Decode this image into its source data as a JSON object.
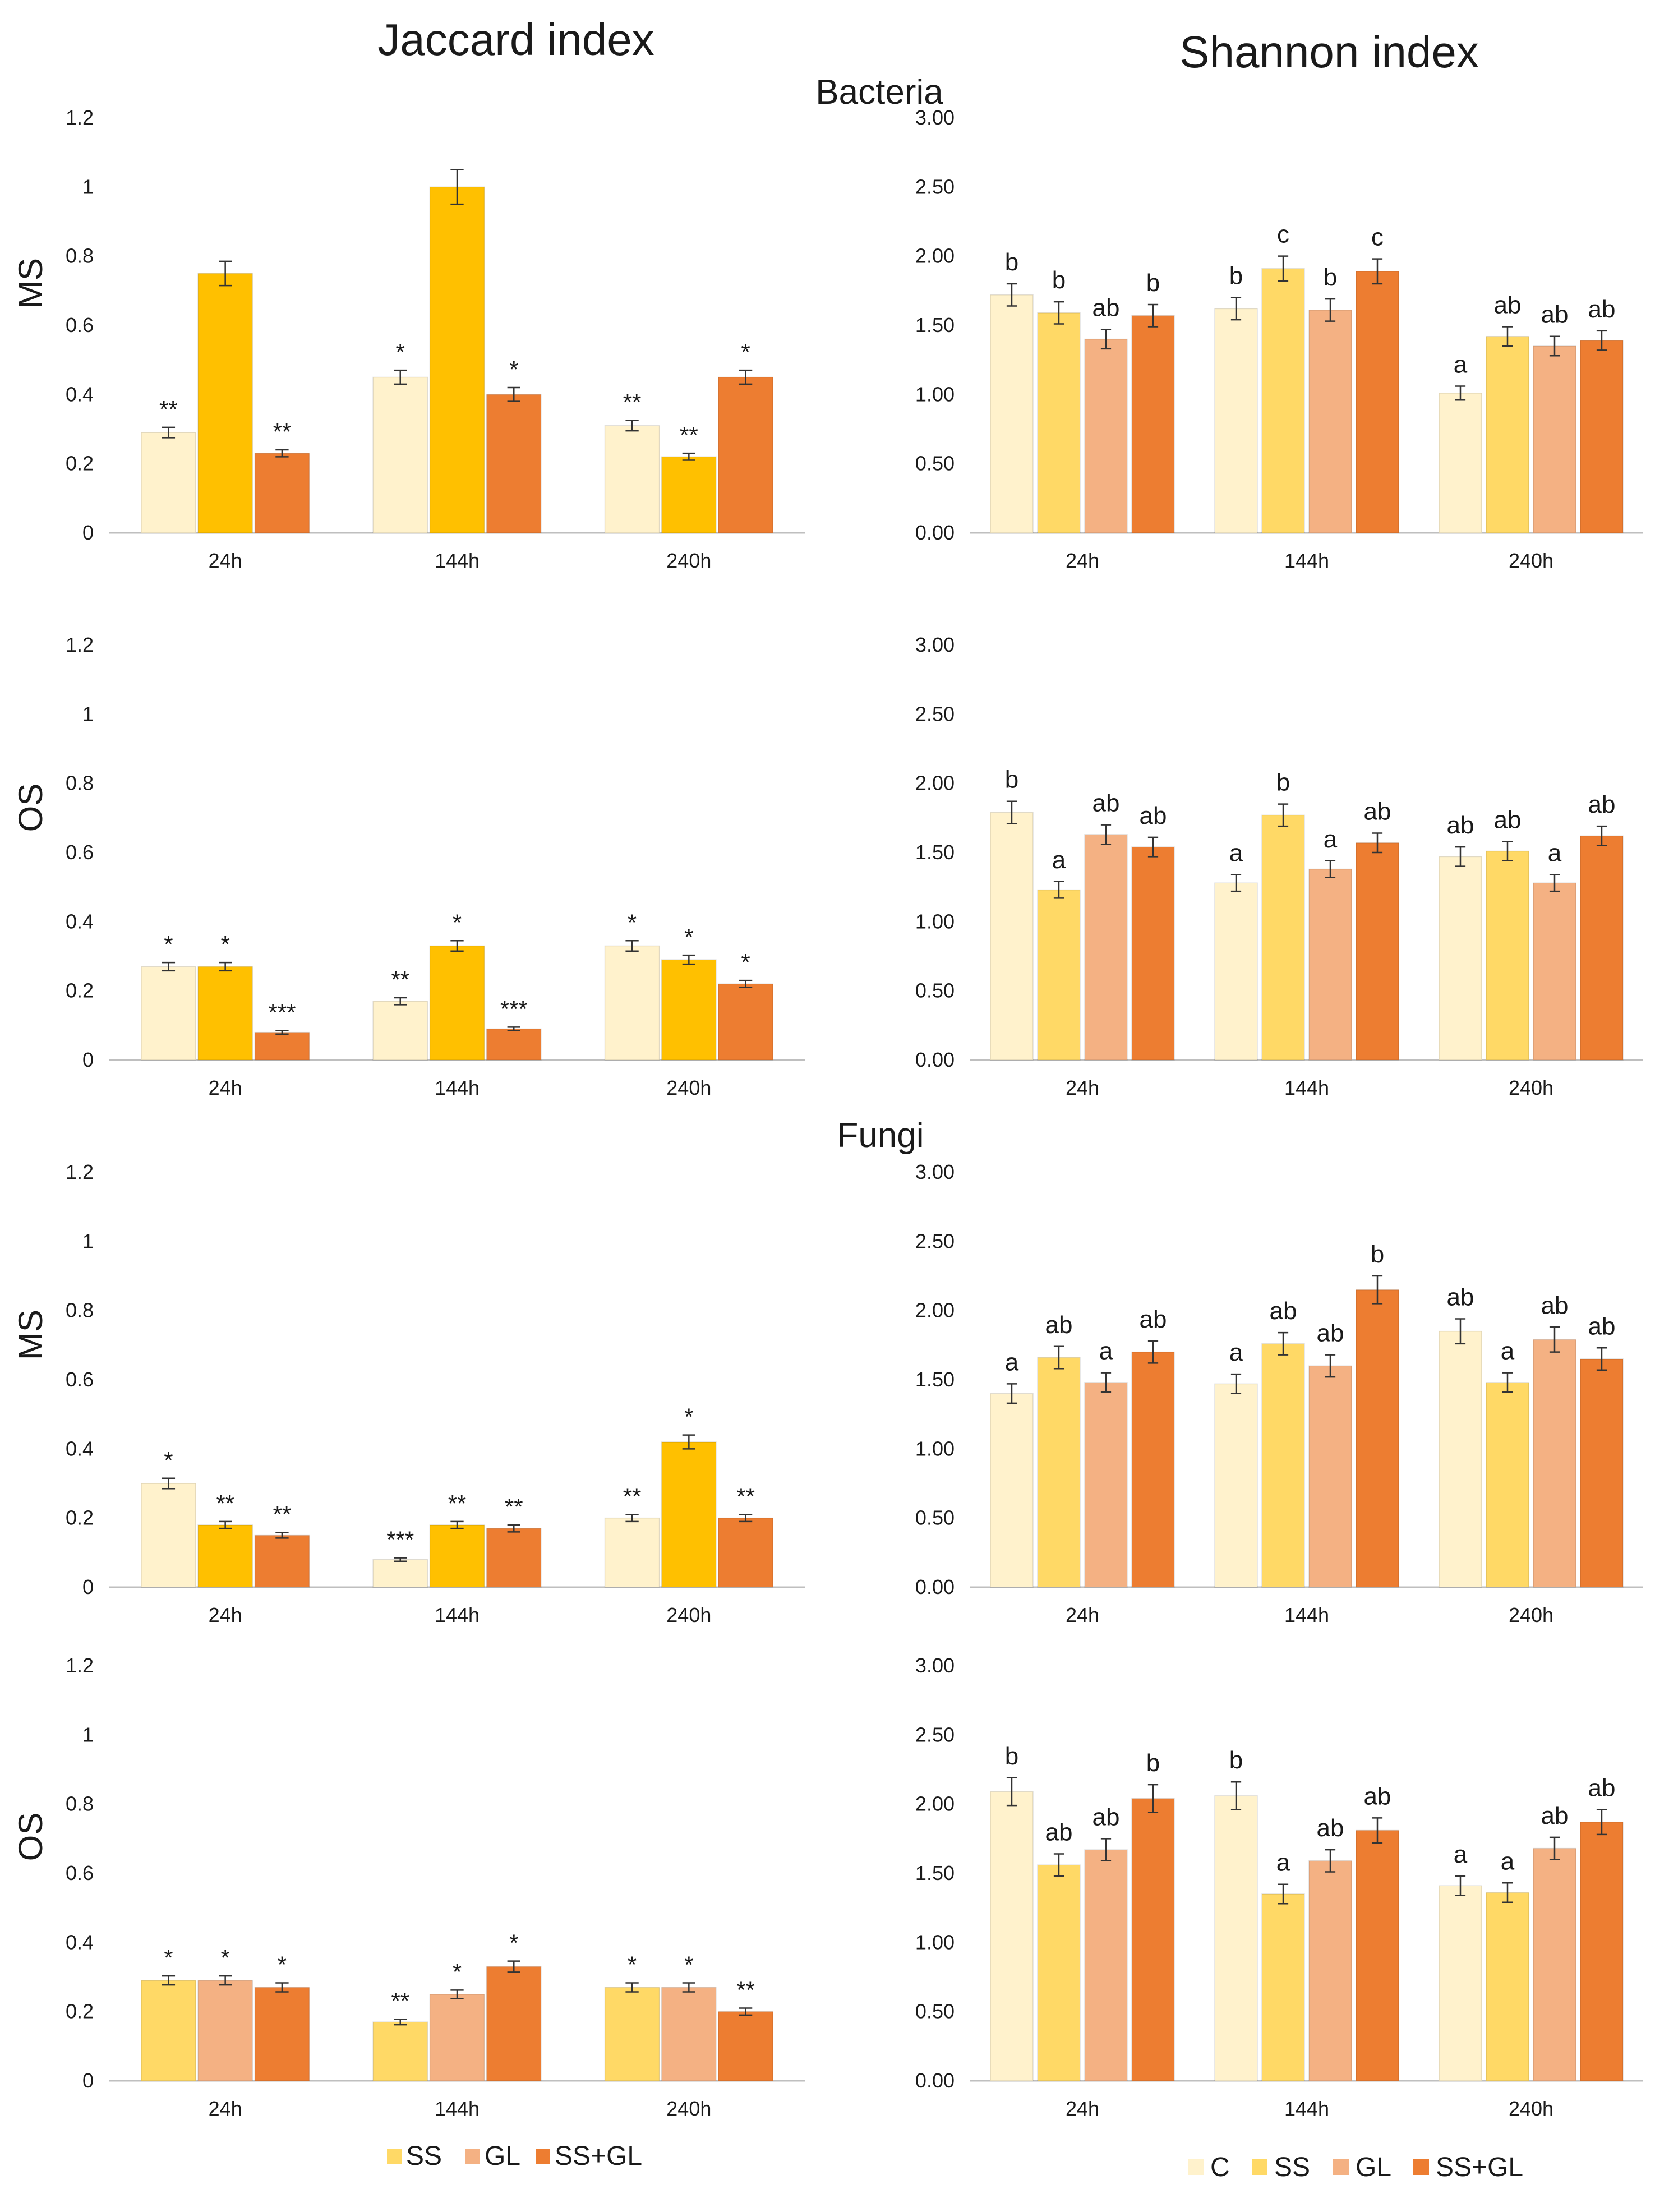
{
  "titles": {
    "jaccard": "Jaccard index",
    "shannon": "Shannon index",
    "bacteria": "Bacteria",
    "fungi": "Fungi"
  },
  "row_labels": [
    "MS",
    "OS",
    "MS",
    "OS"
  ],
  "colors": {
    "C": "#fff2cc",
    "SS_light": "#ffd966",
    "SS_dark": "#ffc000",
    "GL": "#f4b183",
    "SSGL": "#ed7d31"
  },
  "legends": {
    "jaccard": [
      "SS",
      "GL",
      "SS+GL"
    ],
    "shannon": [
      "C",
      "SS",
      "GL",
      "SS+GL"
    ]
  },
  "chart_data": [
    {
      "type": "bar",
      "index": "Jaccard",
      "group": "Bacteria",
      "row": "MS",
      "categories": [
        "24h",
        "144h",
        "240h"
      ],
      "ylim": [
        0,
        1.2
      ],
      "yticks": [
        "0",
        "0.2",
        "0.4",
        "0.6",
        "0.8",
        "1",
        "1.2"
      ],
      "colors": [
        "#fff2cc",
        "#ffc000",
        "#ed7d31"
      ],
      "series": [
        {
          "values": [
            0.29,
            0.45,
            0.31
          ],
          "err": [
            0.015,
            0.02,
            0.015
          ],
          "labels": [
            "**",
            "*",
            "**"
          ]
        },
        {
          "values": [
            0.75,
            1.0,
            0.22
          ],
          "err": [
            0.035,
            0.05,
            0.01
          ],
          "labels": [
            "",
            "",
            "**"
          ]
        },
        {
          "values": [
            0.23,
            0.4,
            0.45
          ],
          "err": [
            0.01,
            0.02,
            0.02
          ],
          "labels": [
            "**",
            "*",
            "*"
          ]
        }
      ]
    },
    {
      "type": "bar",
      "index": "Shannon",
      "group": "Bacteria",
      "row": "MS",
      "categories": [
        "24h",
        "144h",
        "240h"
      ],
      "ylim": [
        0,
        3
      ],
      "yticks": [
        "0.00",
        "0.50",
        "1.00",
        "1.50",
        "2.00",
        "2.50",
        "3.00"
      ],
      "colors": [
        "#fff2cc",
        "#ffd966",
        "#f4b183",
        "#ed7d31"
      ],
      "series": [
        {
          "name": "C",
          "values": [
            1.72,
            1.62,
            1.01
          ],
          "err": [
            0.08,
            0.08,
            0.05
          ],
          "labels": [
            "b",
            "b",
            "a"
          ]
        },
        {
          "name": "SS",
          "values": [
            1.59,
            1.91,
            1.42
          ],
          "err": [
            0.08,
            0.09,
            0.07
          ],
          "labels": [
            "b",
            "c",
            "ab"
          ]
        },
        {
          "name": "GL",
          "values": [
            1.4,
            1.61,
            1.35
          ],
          "err": [
            0.07,
            0.08,
            0.07
          ],
          "labels": [
            "ab",
            "b",
            "ab"
          ]
        },
        {
          "name": "SS+GL",
          "values": [
            1.57,
            1.89,
            1.39
          ],
          "err": [
            0.08,
            0.09,
            0.07
          ],
          "labels": [
            "b",
            "c",
            "ab"
          ]
        }
      ]
    },
    {
      "type": "bar",
      "index": "Jaccard",
      "group": "Bacteria",
      "row": "OS",
      "categories": [
        "24h",
        "144h",
        "240h"
      ],
      "ylim": [
        0,
        1.2
      ],
      "yticks": [
        "0",
        "0.2",
        "0.4",
        "0.6",
        "0.8",
        "1",
        "1.2"
      ],
      "colors": [
        "#fff2cc",
        "#ffc000",
        "#ed7d31"
      ],
      "series": [
        {
          "values": [
            0.27,
            0.17,
            0.33
          ],
          "err": [
            0.012,
            0.01,
            0.015
          ],
          "labels": [
            "*",
            "**",
            "*"
          ]
        },
        {
          "values": [
            0.27,
            0.33,
            0.29
          ],
          "err": [
            0.012,
            0.015,
            0.013
          ],
          "labels": [
            "*",
            "*",
            "*"
          ]
        },
        {
          "values": [
            0.08,
            0.09,
            0.22
          ],
          "err": [
            0.005,
            0.005,
            0.01
          ],
          "labels": [
            "***",
            "***",
            "*"
          ]
        }
      ]
    },
    {
      "type": "bar",
      "index": "Shannon",
      "group": "Bacteria",
      "row": "OS",
      "categories": [
        "24h",
        "144h",
        "240h"
      ],
      "ylim": [
        0,
        3
      ],
      "yticks": [
        "0.00",
        "0.50",
        "1.00",
        "1.50",
        "2.00",
        "2.50",
        "3.00"
      ],
      "colors": [
        "#fff2cc",
        "#ffd966",
        "#f4b183",
        "#ed7d31"
      ],
      "series": [
        {
          "name": "C",
          "values": [
            1.79,
            1.28,
            1.47
          ],
          "err": [
            0.08,
            0.06,
            0.07
          ],
          "labels": [
            "b",
            "a",
            "ab"
          ]
        },
        {
          "name": "SS",
          "values": [
            1.23,
            1.77,
            1.51
          ],
          "err": [
            0.06,
            0.08,
            0.07
          ],
          "labels": [
            "a",
            "b",
            "ab"
          ]
        },
        {
          "name": "GL",
          "values": [
            1.63,
            1.38,
            1.28
          ],
          "err": [
            0.07,
            0.06,
            0.06
          ],
          "labels": [
            "ab",
            "a",
            "a"
          ]
        },
        {
          "name": "SS+GL",
          "values": [
            1.54,
            1.57,
            1.62
          ],
          "err": [
            0.07,
            0.07,
            0.07
          ],
          "labels": [
            "ab",
            "ab",
            "ab"
          ]
        }
      ]
    },
    {
      "type": "bar",
      "index": "Jaccard",
      "group": "Fungi",
      "row": "MS",
      "categories": [
        "24h",
        "144h",
        "240h"
      ],
      "ylim": [
        0,
        1.2
      ],
      "yticks": [
        "0",
        "0.2",
        "0.4",
        "0.6",
        "0.8",
        "1",
        "1.2"
      ],
      "colors": [
        "#fff2cc",
        "#ffc000",
        "#ed7d31"
      ],
      "series": [
        {
          "values": [
            0.3,
            0.08,
            0.2
          ],
          "err": [
            0.015,
            0.005,
            0.01
          ],
          "labels": [
            "*",
            "***",
            "**"
          ]
        },
        {
          "values": [
            0.18,
            0.18,
            0.42
          ],
          "err": [
            0.01,
            0.01,
            0.02
          ],
          "labels": [
            "**",
            "**",
            "*"
          ]
        },
        {
          "values": [
            0.15,
            0.17,
            0.2
          ],
          "err": [
            0.008,
            0.01,
            0.01
          ],
          "labels": [
            "**",
            "**",
            "**"
          ]
        }
      ]
    },
    {
      "type": "bar",
      "index": "Shannon",
      "group": "Fungi",
      "row": "MS",
      "categories": [
        "24h",
        "144h",
        "240h"
      ],
      "ylim": [
        0,
        3
      ],
      "yticks": [
        "0.00",
        "0.50",
        "1.00",
        "1.50",
        "2.00",
        "2.50",
        "3.00"
      ],
      "colors": [
        "#fff2cc",
        "#ffd966",
        "#f4b183",
        "#ed7d31"
      ],
      "series": [
        {
          "name": "C",
          "values": [
            1.4,
            1.47,
            1.85
          ],
          "err": [
            0.07,
            0.07,
            0.09
          ],
          "labels": [
            "a",
            "a",
            "ab"
          ]
        },
        {
          "name": "SS",
          "values": [
            1.66,
            1.76,
            1.48
          ],
          "err": [
            0.08,
            0.08,
            0.07
          ],
          "labels": [
            "ab",
            "ab",
            "a"
          ]
        },
        {
          "name": "GL",
          "values": [
            1.48,
            1.6,
            1.79
          ],
          "err": [
            0.07,
            0.08,
            0.09
          ],
          "labels": [
            "a",
            "ab",
            "ab"
          ]
        },
        {
          "name": "SS+GL",
          "values": [
            1.7,
            2.15,
            1.65
          ],
          "err": [
            0.08,
            0.1,
            0.08
          ],
          "labels": [
            "ab",
            "b",
            "ab"
          ]
        }
      ]
    },
    {
      "type": "bar",
      "index": "Jaccard",
      "group": "Fungi",
      "row": "OS",
      "categories": [
        "24h",
        "144h",
        "240h"
      ],
      "ylim": [
        0,
        1.2
      ],
      "yticks": [
        "0",
        "0.2",
        "0.4",
        "0.6",
        "0.8",
        "1",
        "1.2"
      ],
      "colors": [
        "#ffd966",
        "#f4b183",
        "#ed7d31"
      ],
      "series": [
        {
          "name": "SS",
          "values": [
            0.29,
            0.17,
            0.27
          ],
          "err": [
            0.013,
            0.008,
            0.013
          ],
          "labels": [
            "*",
            "**",
            "*"
          ]
        },
        {
          "name": "GL",
          "values": [
            0.29,
            0.25,
            0.27
          ],
          "err": [
            0.013,
            0.012,
            0.013
          ],
          "labels": [
            "*",
            "*",
            "*"
          ]
        },
        {
          "name": "SS+GL",
          "values": [
            0.27,
            0.33,
            0.2
          ],
          "err": [
            0.013,
            0.016,
            0.01
          ],
          "labels": [
            "*",
            "*",
            "**"
          ]
        }
      ]
    },
    {
      "type": "bar",
      "index": "Shannon",
      "group": "Fungi",
      "row": "OS",
      "categories": [
        "24h",
        "144h",
        "240h"
      ],
      "ylim": [
        0,
        3
      ],
      "yticks": [
        "0.00",
        "0.50",
        "1.00",
        "1.50",
        "2.00",
        "2.50",
        "3.00"
      ],
      "colors": [
        "#fff2cc",
        "#ffd966",
        "#f4b183",
        "#ed7d31"
      ],
      "series": [
        {
          "name": "C",
          "values": [
            2.09,
            2.06,
            1.41
          ],
          "err": [
            0.1,
            0.1,
            0.07
          ],
          "labels": [
            "b",
            "b",
            "a"
          ]
        },
        {
          "name": "SS",
          "values": [
            1.56,
            1.35,
            1.36
          ],
          "err": [
            0.08,
            0.07,
            0.07
          ],
          "labels": [
            "ab",
            "a",
            "a"
          ]
        },
        {
          "name": "GL",
          "values": [
            1.67,
            1.59,
            1.68
          ],
          "err": [
            0.08,
            0.08,
            0.08
          ],
          "labels": [
            "ab",
            "ab",
            "ab"
          ]
        },
        {
          "name": "SS+GL",
          "values": [
            2.04,
            1.81,
            1.87
          ],
          "err": [
            0.1,
            0.09,
            0.09
          ],
          "labels": [
            "b",
            "ab",
            "ab"
          ]
        }
      ]
    }
  ]
}
